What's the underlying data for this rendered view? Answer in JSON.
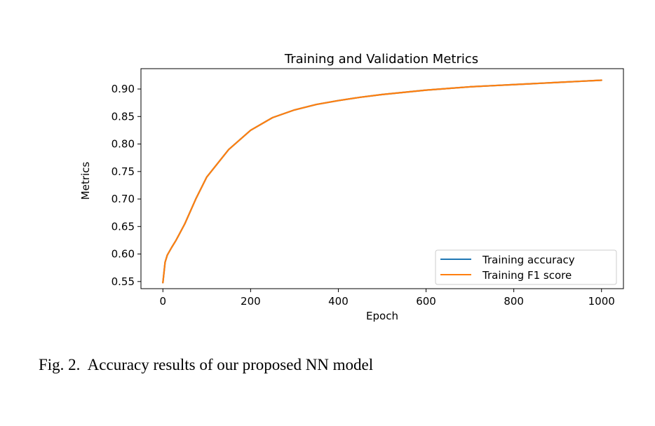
{
  "figure": {
    "caption": "Fig. 2.  Accuracy results of our proposed NN model"
  },
  "colors": {
    "accuracy": "#1f77b4",
    "f1": "#ff7f0e"
  },
  "chart_data": {
    "type": "line",
    "title": "Training and Validation Metrics",
    "xlabel": "Epoch",
    "ylabel": "Metrics",
    "xlim": [
      -50,
      1050
    ],
    "ylim": [
      0.537,
      0.937
    ],
    "xticks": [
      0,
      200,
      400,
      600,
      800,
      1000
    ],
    "xtick_labels": [
      "0",
      "200",
      "400",
      "600",
      "800",
      "1000"
    ],
    "yticks": [
      0.55,
      0.6,
      0.65,
      0.7,
      0.75,
      0.8,
      0.85,
      0.9
    ],
    "ytick_labels": [
      "0.55",
      "0.60",
      "0.65",
      "0.70",
      "0.75",
      "0.80",
      "0.85",
      "0.90"
    ],
    "grid": false,
    "legend_position": "lower-right",
    "x": [
      0,
      5,
      10,
      20,
      30,
      50,
      75,
      100,
      150,
      200,
      250,
      300,
      350,
      400,
      450,
      500,
      550,
      600,
      650,
      700,
      750,
      800,
      850,
      900,
      950,
      1000
    ],
    "series": [
      {
        "name": "Training accuracy",
        "values": [
          0.548,
          0.585,
          0.598,
          0.612,
          0.625,
          0.655,
          0.7,
          0.74,
          0.79,
          0.825,
          0.848,
          0.862,
          0.872,
          0.879,
          0.885,
          0.89,
          0.894,
          0.898,
          0.901,
          0.904,
          0.906,
          0.908,
          0.91,
          0.912,
          0.914,
          0.916
        ]
      },
      {
        "name": "Training F1 score",
        "values": [
          0.548,
          0.585,
          0.598,
          0.612,
          0.625,
          0.655,
          0.7,
          0.74,
          0.79,
          0.825,
          0.848,
          0.862,
          0.872,
          0.879,
          0.885,
          0.89,
          0.894,
          0.898,
          0.901,
          0.904,
          0.906,
          0.908,
          0.91,
          0.912,
          0.914,
          0.916
        ]
      }
    ]
  }
}
